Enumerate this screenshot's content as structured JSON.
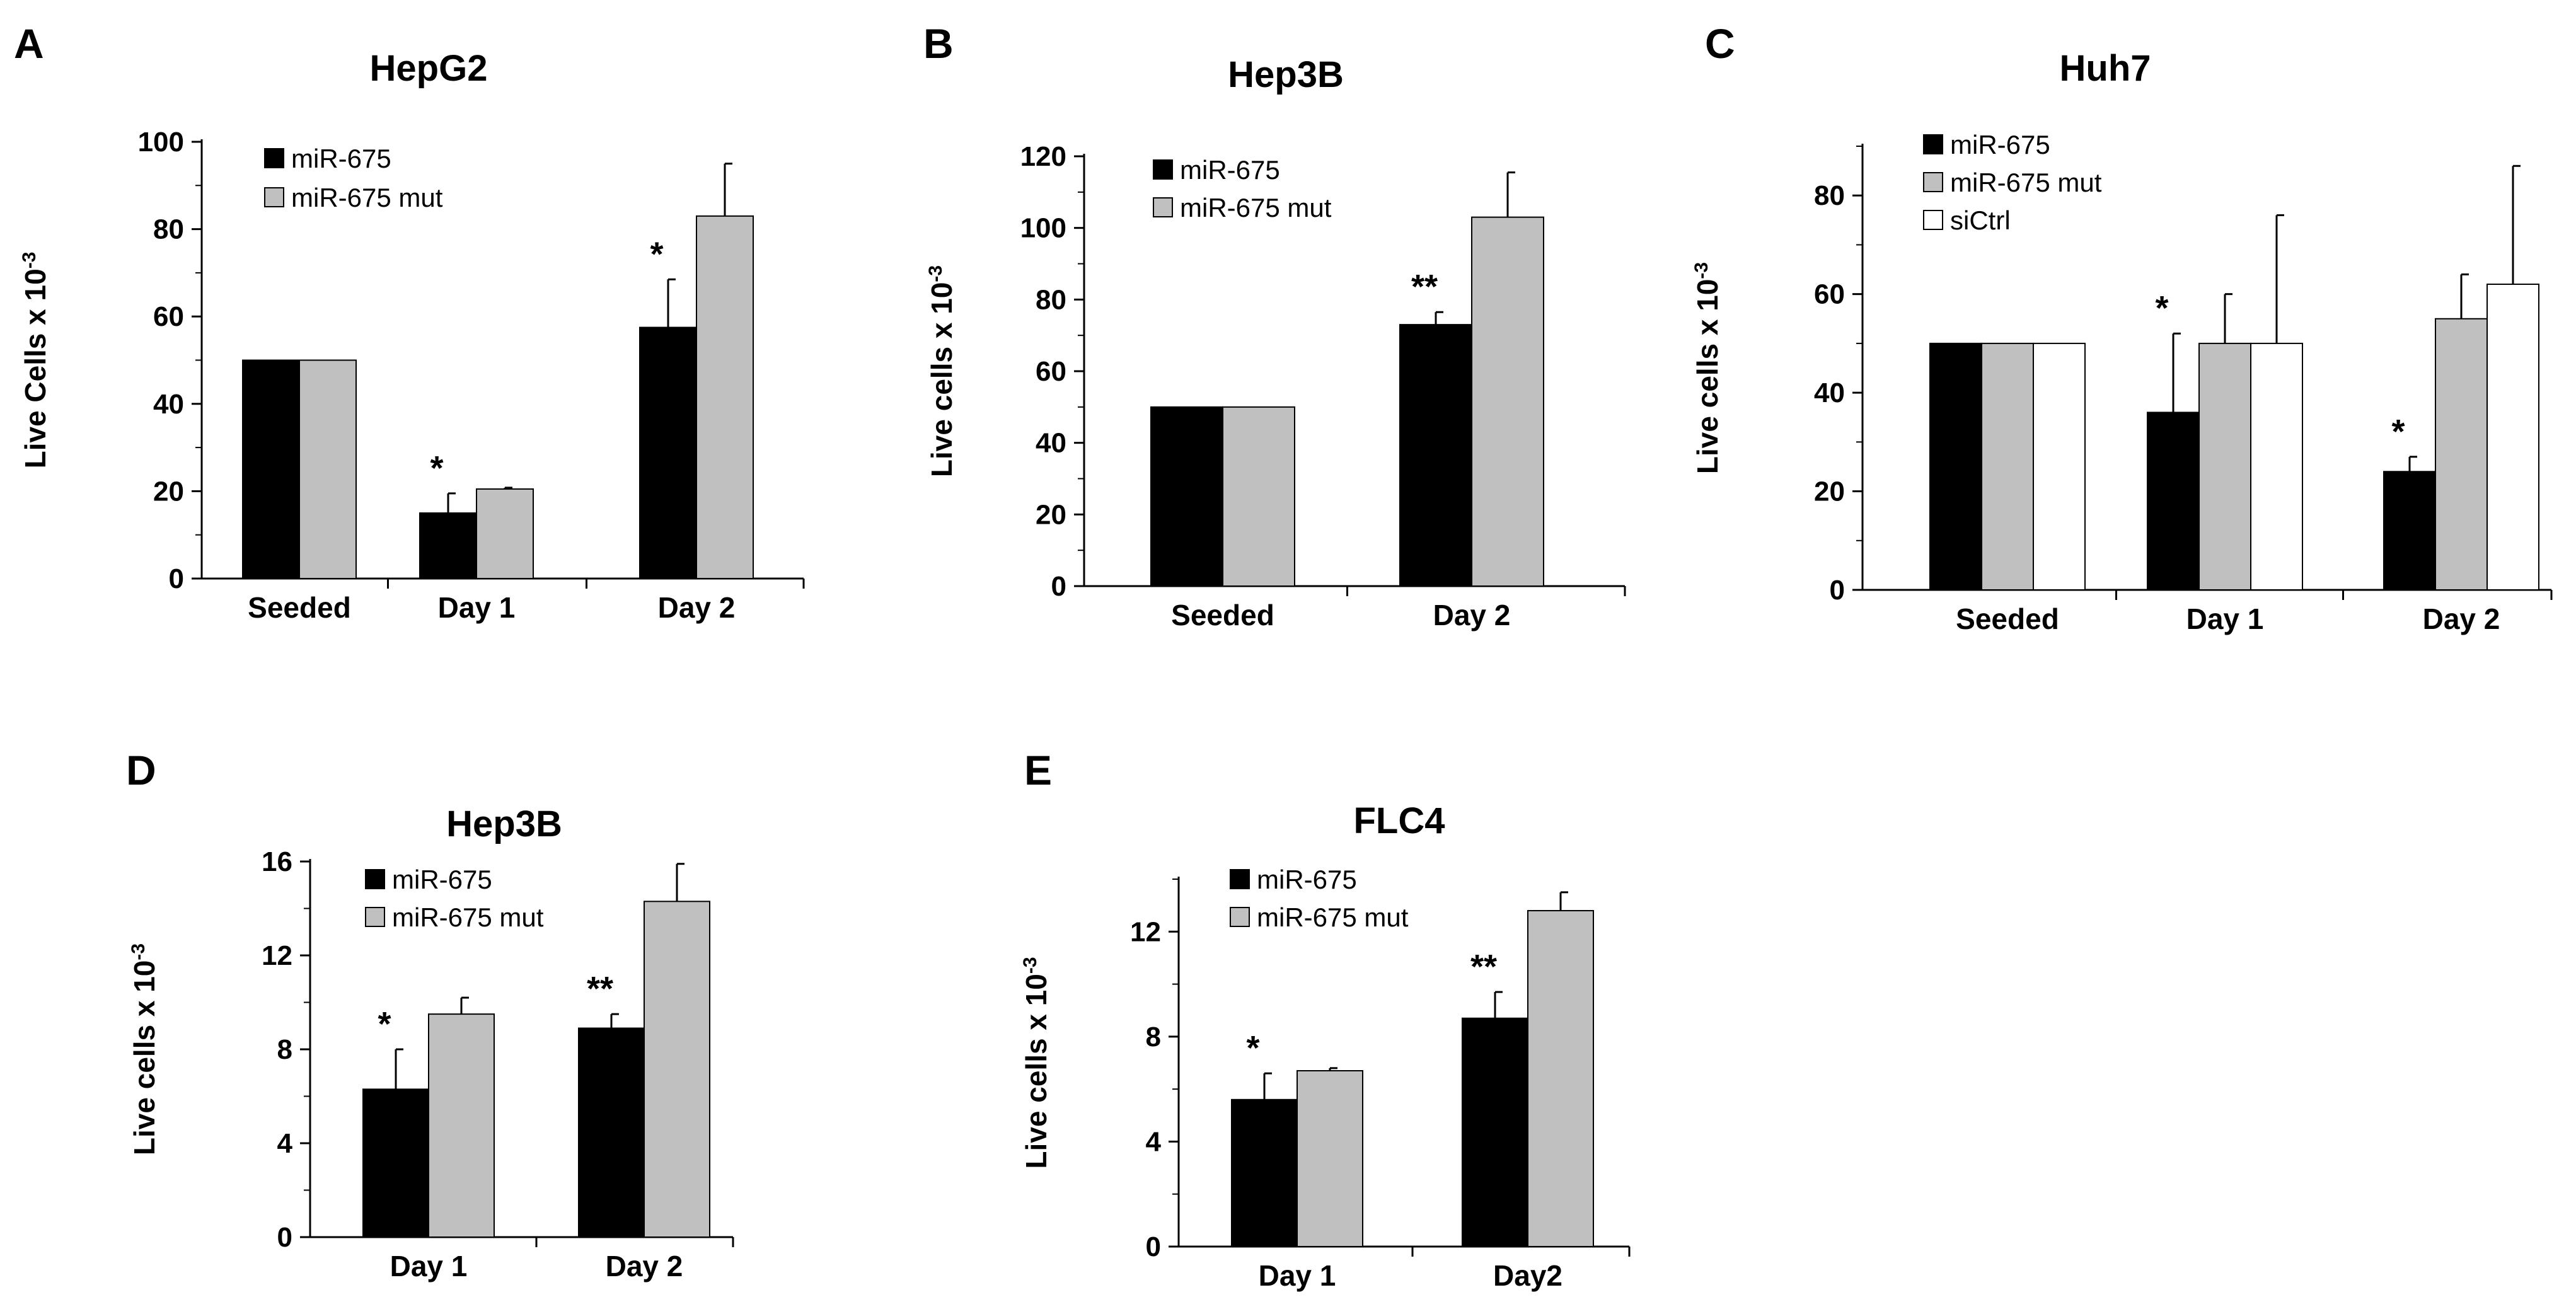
{
  "colors": {
    "miR-675": "#000000",
    "miR-675 mut": "#c0c0c0",
    "siCtrl": "#ffffff",
    "edge": "#000000"
  },
  "chart_data": [
    {
      "panel": "A",
      "type": "bar",
      "title": "HepG2",
      "ylabel_main": "Live Cells x 10",
      "ylabel_sup": "-3",
      "ylim": [
        0,
        100
      ],
      "ticks": [
        0,
        20,
        40,
        60,
        80,
        100
      ],
      "minor_step": 10,
      "categories": [
        "Seeded",
        "Day 1",
        "Day 2"
      ],
      "series": [
        {
          "name": "miR-675",
          "values": [
            50,
            15,
            57.5
          ],
          "errors": [
            0,
            4.5,
            11
          ],
          "significance": [
            "",
            "*",
            "*"
          ]
        },
        {
          "name": "miR-675 mut",
          "values": [
            50,
            20.5,
            83
          ],
          "errors": [
            0,
            0.3,
            12
          ],
          "significance": [
            "",
            "",
            ""
          ]
        }
      ]
    },
    {
      "panel": "B",
      "type": "bar",
      "title": "Hep3B",
      "ylabel_main": "Live cells x 10",
      "ylabel_sup": "-3",
      "ylim": [
        0,
        120
      ],
      "ticks": [
        0,
        20,
        40,
        60,
        80,
        100,
        120
      ],
      "minor_step": 10,
      "categories": [
        "Seeded",
        "Day 2"
      ],
      "series": [
        {
          "name": "miR-675",
          "values": [
            50,
            73
          ],
          "errors": [
            0,
            3.5
          ],
          "significance": [
            "",
            "**"
          ]
        },
        {
          "name": "miR-675 mut",
          "values": [
            50,
            103
          ],
          "errors": [
            0,
            12.5
          ],
          "significance": [
            "",
            ""
          ]
        }
      ]
    },
    {
      "panel": "C",
      "type": "bar",
      "title": "Huh7",
      "ylabel_main": "Live cells x 10",
      "ylabel_sup": "-3",
      "ylim": [
        0,
        90
      ],
      "ticks": [
        0,
        20,
        40,
        60,
        80
      ],
      "minor_step": 10,
      "categories": [
        "Seeded",
        "Day 1",
        "Day 2"
      ],
      "series": [
        {
          "name": "miR-675",
          "values": [
            50,
            36,
            24
          ],
          "errors": [
            0,
            16,
            3
          ],
          "significance": [
            "",
            "*",
            "*"
          ]
        },
        {
          "name": "miR-675 mut",
          "values": [
            50,
            50,
            55
          ],
          "errors": [
            0,
            10,
            9
          ],
          "significance": [
            "",
            "",
            ""
          ]
        },
        {
          "name": "siCtrl",
          "values": [
            50,
            50,
            62
          ],
          "errors": [
            0,
            26,
            24
          ],
          "significance": [
            "",
            "",
            ""
          ]
        }
      ]
    },
    {
      "panel": "D",
      "type": "bar",
      "title": "Hep3B",
      "ylabel_main": "Live cells x 10",
      "ylabel_sup": "-3",
      "ylim": [
        0,
        16
      ],
      "ticks": [
        0,
        4,
        8,
        12,
        16
      ],
      "minor_step": 2,
      "categories": [
        "Day 1",
        "Day 2"
      ],
      "series": [
        {
          "name": "miR-675",
          "values": [
            6.3,
            8.9
          ],
          "errors": [
            1.7,
            0.6
          ],
          "significance": [
            "*",
            "**"
          ]
        },
        {
          "name": "miR-675 mut",
          "values": [
            9.5,
            14.3
          ],
          "errors": [
            0.7,
            1.6
          ],
          "significance": [
            "",
            ""
          ]
        }
      ]
    },
    {
      "panel": "E",
      "type": "bar",
      "title": "FLC4",
      "ylabel_main": "Live cells x 10",
      "ylabel_sup": "-3",
      "ylim": [
        0,
        14
      ],
      "ticks": [
        0,
        4,
        8,
        12
      ],
      "minor_step": 2,
      "categories": [
        "Day 1",
        "Day2"
      ],
      "series": [
        {
          "name": "miR-675",
          "values": [
            5.6,
            8.7
          ],
          "errors": [
            1.0,
            1.0
          ],
          "significance": [
            "*",
            "**"
          ]
        },
        {
          "name": "miR-675 mut",
          "values": [
            6.7,
            12.8
          ],
          "errors": [
            0.1,
            0.7
          ],
          "significance": [
            "",
            ""
          ]
        }
      ]
    }
  ]
}
